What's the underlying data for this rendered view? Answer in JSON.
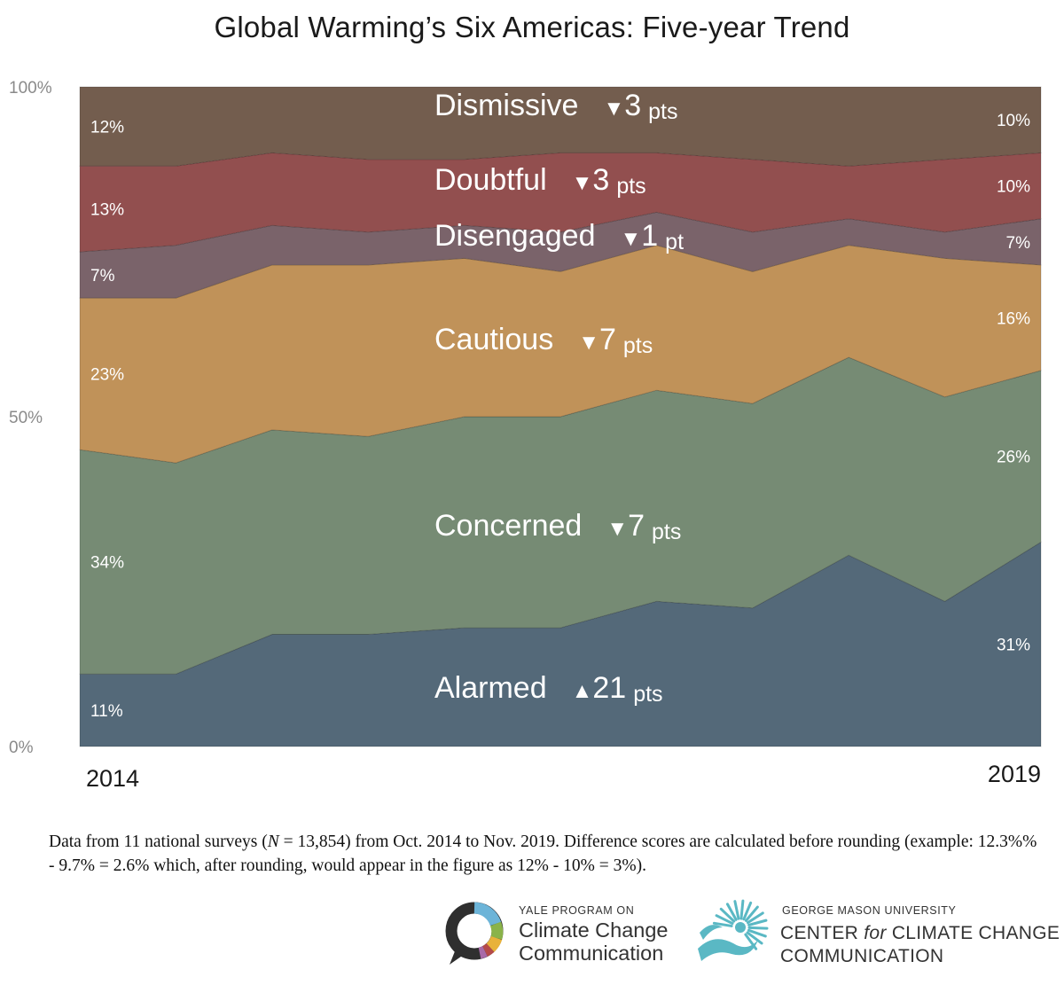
{
  "chart_data": {
    "type": "area",
    "stacking": "percent",
    "title": "Global Warming’s Six Americas: Five-year Trend",
    "xlabel": "",
    "ylabel": "",
    "ylim": [
      0,
      100
    ],
    "y_ticks": [
      "0%",
      "50%",
      "100%"
    ],
    "x_tick_labels": [
      "2014",
      "2019"
    ],
    "survey_count": 11,
    "series": [
      {
        "name": "Alarmed",
        "color": "#546979",
        "values": [
          11,
          11,
          17,
          17,
          18,
          18,
          22,
          21,
          29,
          22,
          31
        ],
        "start_label": "11%",
        "end_label": "31%",
        "direction": "up",
        "change": "21",
        "unit": "pts"
      },
      {
        "name": "Concerned",
        "color": "#768b74",
        "values": [
          34,
          32,
          31,
          30,
          32,
          32,
          32,
          31,
          30,
          31,
          26
        ],
        "start_label": "34%",
        "end_label": "26%",
        "direction": "down",
        "change": "7",
        "unit": "pts"
      },
      {
        "name": "Cautious",
        "color": "#c09259",
        "values": [
          23,
          25,
          25,
          26,
          24,
          22,
          22,
          20,
          17,
          21,
          16
        ],
        "start_label": "23%",
        "end_label": "16%",
        "direction": "down",
        "change": "7",
        "unit": "pts"
      },
      {
        "name": "Disengaged",
        "color": "#7a636a",
        "values": [
          7,
          8,
          6,
          5,
          5,
          6,
          5,
          6,
          4,
          4,
          7
        ],
        "start_label": "7%",
        "end_label": "7%",
        "direction": "down",
        "change": "1",
        "unit": "pt"
      },
      {
        "name": "Doubtful",
        "color": "#924f4f",
        "values": [
          13,
          12,
          11,
          11,
          10,
          12,
          9,
          11,
          8,
          11,
          10
        ],
        "start_label": "13%",
        "end_label": "10%",
        "direction": "down",
        "change": "3",
        "unit": "pts"
      },
      {
        "name": "Dismissive",
        "color": "#735d4e",
        "values": [
          12,
          12,
          10,
          11,
          11,
          10,
          10,
          11,
          12,
          11,
          10
        ],
        "start_label": "12%",
        "end_label": "10%",
        "direction": "down",
        "change": "3",
        "unit": "pts"
      }
    ]
  },
  "footnote": {
    "prefix": "Data from 11 national surveys (",
    "n_symbol": "N",
    "suffix": " = 13,854) from Oct. 2014 to Nov. 2019. Difference scores are calculated before rounding (example: 12.3%% - 9.7% = 2.6% which, after rounding, would appear in the figure as 12% - 10% = 3%)."
  },
  "logos": {
    "yale": {
      "small": "YALE PROGRAM ON",
      "line1": "Climate Change",
      "line2": "Communication",
      "ring_colors": [
        "#6cb4d8",
        "#8ab34a",
        "#e8b23a",
        "#b54a4a",
        "#a86aa8"
      ]
    },
    "gmu": {
      "small": "GEORGE MASON UNIVERSITY",
      "line1_a": "CENTER ",
      "line1_for": "for",
      "line1_b": " CLIMATE CHANGE",
      "line2": "COMMUNICATION",
      "color": "#5ab8c4"
    }
  }
}
